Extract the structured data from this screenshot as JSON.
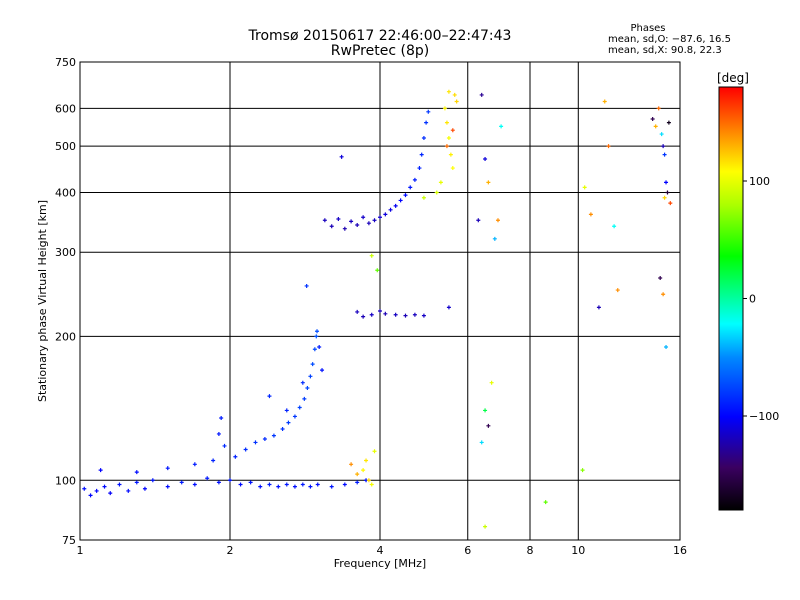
{
  "chart_data": {
    "type": "scatter",
    "title": "Tromsø 20150617 22:46:00–22:47:43",
    "subtitle": "RwPretec (8p)",
    "xlabel": "Frequency [MHz]",
    "ylabel": "Stationary phase Virtual Height [km]",
    "x_scale": "log",
    "y_scale": "log",
    "xlim": [
      1,
      16
    ],
    "ylim": [
      75,
      750
    ],
    "x_ticks": [
      1,
      2,
      4,
      6,
      8,
      10,
      16
    ],
    "x_tick_labels": [
      "1",
      "2",
      "4",
      "6",
      "8",
      "10",
      "16"
    ],
    "y_ticks": [
      75,
      100,
      200,
      300,
      400,
      500,
      600,
      750
    ],
    "y_tick_labels": [
      "75",
      "100",
      "200",
      "300",
      "400",
      "500",
      "600",
      "750"
    ],
    "grid": true,
    "phases_box": {
      "title": "Phases",
      "line_o": "mean, sd,O: −87.6, 16.5",
      "line_x": "mean, sd,X:  90.8, 22.3"
    },
    "colorbar": {
      "label": "[deg]",
      "range": [
        -180,
        180
      ],
      "ticks": [
        100,
        0,
        -100
      ],
      "tick_labels": [
        "100",
        "0",
        "−100"
      ]
    },
    "series": [
      {
        "color_by": "phase_deg",
        "points": [
          [
            1.02,
            96,
            -95
          ],
          [
            1.05,
            93,
            -98
          ],
          [
            1.08,
            95,
            -100
          ],
          [
            1.12,
            97,
            -96
          ],
          [
            1.15,
            94,
            -102
          ],
          [
            1.2,
            98,
            -94
          ],
          [
            1.25,
            95,
            -97
          ],
          [
            1.3,
            99,
            -92
          ],
          [
            1.35,
            96,
            -99
          ],
          [
            1.4,
            100,
            -93
          ],
          [
            1.5,
            97,
            -96
          ],
          [
            1.6,
            99,
            -90
          ],
          [
            1.7,
            98,
            -95
          ],
          [
            1.8,
            101,
            -91
          ],
          [
            1.9,
            99,
            -94
          ],
          [
            2.0,
            100,
            -92
          ],
          [
            2.1,
            98,
            -96
          ],
          [
            2.2,
            99,
            -93
          ],
          [
            2.3,
            97,
            -95
          ],
          [
            2.4,
            98,
            -90
          ],
          [
            2.5,
            97,
            -94
          ],
          [
            2.6,
            98,
            -92
          ],
          [
            2.7,
            97,
            -95
          ],
          [
            2.8,
            98,
            -91
          ],
          [
            2.9,
            97,
            -93
          ],
          [
            3.0,
            98,
            -95
          ],
          [
            3.2,
            97,
            -92
          ],
          [
            3.4,
            98,
            -96
          ],
          [
            3.6,
            99,
            -90
          ],
          [
            3.75,
            100,
            -94
          ],
          [
            1.1,
            105,
            -100
          ],
          [
            1.3,
            104,
            -96
          ],
          [
            1.5,
            106,
            -92
          ],
          [
            1.7,
            108,
            -90
          ],
          [
            1.85,
            110,
            -88
          ],
          [
            1.95,
            118,
            -85
          ],
          [
            2.05,
            112,
            -88
          ],
          [
            2.15,
            116,
            -84
          ],
          [
            2.25,
            120,
            -82
          ],
          [
            2.35,
            122,
            -85
          ],
          [
            2.45,
            124,
            -80
          ],
          [
            2.55,
            128,
            -82
          ],
          [
            2.62,
            132,
            -78
          ],
          [
            2.7,
            136,
            -80
          ],
          [
            2.76,
            142,
            -76
          ],
          [
            2.82,
            148,
            -78
          ],
          [
            2.86,
            156,
            -74
          ],
          [
            2.9,
            165,
            -76
          ],
          [
            2.93,
            175,
            -72
          ],
          [
            2.96,
            188,
            -74
          ],
          [
            2.98,
            200,
            -70
          ],
          [
            2.99,
            205,
            -72
          ],
          [
            1.9,
            125,
            -92
          ],
          [
            1.92,
            135,
            -90
          ],
          [
            2.4,
            150,
            -86
          ],
          [
            2.6,
            140,
            -88
          ],
          [
            2.8,
            160,
            -84
          ],
          [
            2.85,
            255,
            -82
          ],
          [
            3.02,
            190,
            -90
          ],
          [
            3.06,
            170,
            -94
          ],
          [
            3.1,
            350,
            -118
          ],
          [
            3.2,
            340,
            -120
          ],
          [
            3.3,
            352,
            -116
          ],
          [
            3.4,
            336,
            -122
          ],
          [
            3.5,
            348,
            -118
          ],
          [
            3.6,
            342,
            -120
          ],
          [
            3.7,
            355,
            -115
          ],
          [
            3.8,
            345,
            -119
          ],
          [
            3.9,
            350,
            -117
          ],
          [
            4.0,
            355,
            -114
          ],
          [
            4.1,
            360,
            -110
          ],
          [
            4.2,
            368,
            -108
          ],
          [
            4.3,
            375,
            -104
          ],
          [
            4.4,
            385,
            -100
          ],
          [
            4.5,
            395,
            -96
          ],
          [
            4.6,
            410,
            -92
          ],
          [
            4.7,
            425,
            -90
          ],
          [
            4.8,
            450,
            -88
          ],
          [
            4.85,
            480,
            -86
          ],
          [
            4.9,
            520,
            -84
          ],
          [
            4.95,
            560,
            -82
          ],
          [
            5.0,
            590,
            -80
          ],
          [
            3.35,
            475,
            -110
          ],
          [
            3.6,
            225,
            -118
          ],
          [
            3.7,
            220,
            -120
          ],
          [
            3.85,
            222,
            -116
          ],
          [
            4.0,
            226,
            -119
          ],
          [
            4.1,
            223,
            -121
          ],
          [
            4.3,
            222,
            -117
          ],
          [
            4.5,
            221,
            -120
          ],
          [
            4.7,
            222,
            -118
          ],
          [
            4.9,
            221,
            -116
          ],
          [
            5.5,
            230,
            -114
          ],
          [
            5.4,
            600,
            110
          ],
          [
            5.45,
            560,
            115
          ],
          [
            5.5,
            520,
            105
          ],
          [
            5.55,
            480,
            112
          ],
          [
            5.6,
            450,
            108
          ],
          [
            5.65,
            640,
            118
          ],
          [
            5.7,
            620,
            120
          ],
          [
            5.5,
            650,
            115
          ],
          [
            5.3,
            420,
            100
          ],
          [
            5.2,
            400,
            95
          ],
          [
            5.45,
            500,
            150
          ],
          [
            5.6,
            540,
            160
          ],
          [
            4.9,
            390,
            90
          ],
          [
            3.7,
            105,
            110
          ],
          [
            3.75,
            110,
            115
          ],
          [
            3.8,
            100,
            120
          ],
          [
            3.85,
            98,
            105
          ],
          [
            3.6,
            103,
            130
          ],
          [
            3.9,
            115,
            100
          ],
          [
            3.5,
            108,
            140
          ],
          [
            3.85,
            295,
            90
          ],
          [
            3.95,
            275,
            60
          ],
          [
            6.3,
            350,
            -120
          ],
          [
            6.4,
            640,
            -130
          ],
          [
            6.5,
            470,
            -110
          ],
          [
            6.6,
            420,
            130
          ],
          [
            6.8,
            320,
            -40
          ],
          [
            6.9,
            350,
            140
          ],
          [
            7.0,
            550,
            -20
          ],
          [
            6.5,
            140,
            20
          ],
          [
            6.6,
            130,
            -150
          ],
          [
            6.4,
            120,
            -30
          ],
          [
            6.7,
            160,
            100
          ],
          [
            6.5,
            80,
            90
          ],
          [
            8.6,
            90,
            60
          ],
          [
            10.2,
            105,
            70
          ],
          [
            10.3,
            410,
            100
          ],
          [
            10.6,
            360,
            140
          ],
          [
            11.0,
            230,
            -120
          ],
          [
            11.3,
            620,
            130
          ],
          [
            11.5,
            500,
            150
          ],
          [
            11.8,
            340,
            -20
          ],
          [
            12.0,
            250,
            140
          ],
          [
            14.1,
            570,
            -150
          ],
          [
            14.3,
            550,
            130
          ],
          [
            14.5,
            600,
            150
          ],
          [
            14.7,
            530,
            -30
          ],
          [
            14.8,
            500,
            -120
          ],
          [
            14.9,
            480,
            -80
          ],
          [
            15.0,
            420,
            -100
          ],
          [
            15.1,
            400,
            -160
          ],
          [
            15.2,
            560,
            -170
          ],
          [
            15.3,
            380,
            160
          ],
          [
            14.6,
            265,
            -150
          ],
          [
            14.8,
            245,
            140
          ],
          [
            15.0,
            190,
            -40
          ],
          [
            14.9,
            390,
            120
          ]
        ]
      }
    ]
  }
}
